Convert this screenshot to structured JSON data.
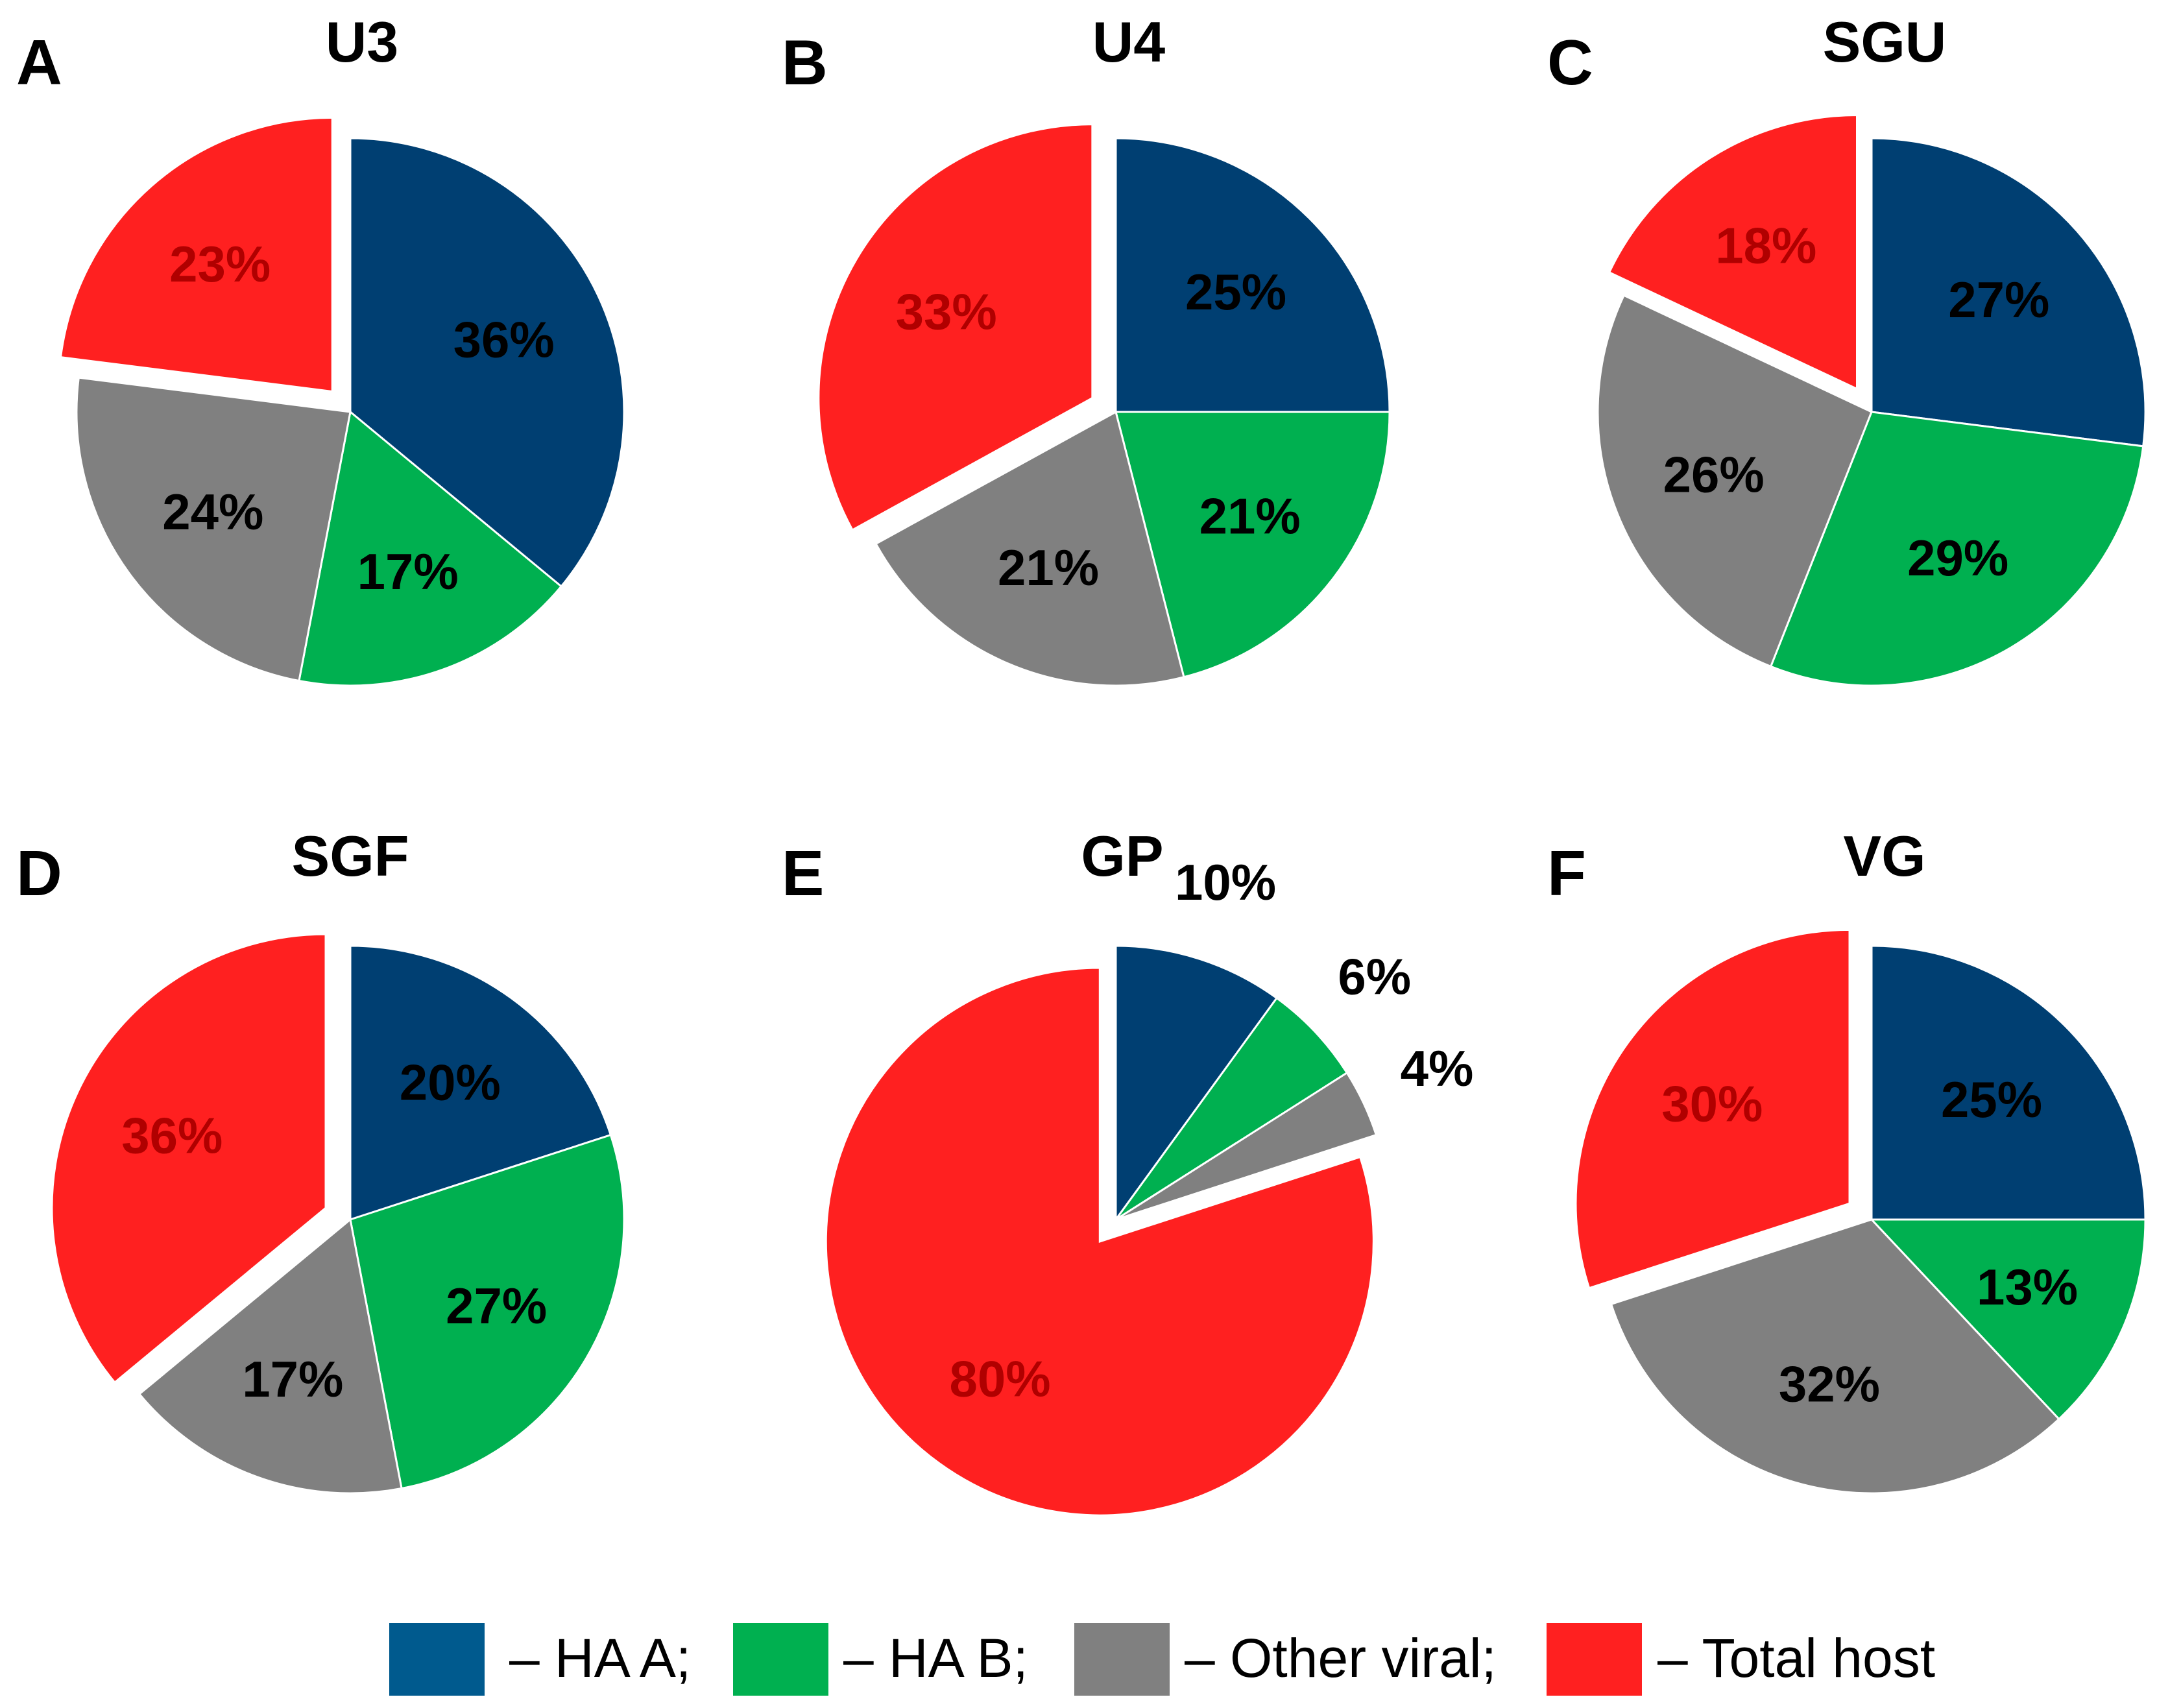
{
  "legend": {
    "items": [
      {
        "label": "– HA A;",
        "color": "#005a8e"
      },
      {
        "label": "– HA B;",
        "color": "#00b050"
      },
      {
        "label": "– Other viral;",
        "color": "#808080"
      },
      {
        "label": "– Total host",
        "color": "#ff2020"
      }
    ]
  },
  "chart_data": [
    {
      "type": "pie",
      "panel": "A",
      "title": "U3",
      "slices": [
        {
          "name": "HA A",
          "value": 36,
          "label": "36%",
          "color": "#003f72",
          "labelColor": "#000000"
        },
        {
          "name": "HA B",
          "value": 17,
          "label": "17%",
          "color": "#00b050",
          "labelColor": "#000000"
        },
        {
          "name": "Other viral",
          "value": 24,
          "label": "24%",
          "color": "#808080",
          "labelColor": "#000000"
        },
        {
          "name": "Total host",
          "value": 23,
          "label": "23%",
          "color": "#ff2020",
          "labelColor": "#b00000",
          "exploded": true
        }
      ]
    },
    {
      "type": "pie",
      "panel": "B",
      "title": "U4",
      "slices": [
        {
          "name": "HA A",
          "value": 25,
          "label": "25%",
          "color": "#003f72",
          "labelColor": "#000000"
        },
        {
          "name": "HA B",
          "value": 21,
          "label": "21%",
          "color": "#00b050",
          "labelColor": "#000000"
        },
        {
          "name": "Other viral",
          "value": 21,
          "label": "21%",
          "color": "#808080",
          "labelColor": "#000000"
        },
        {
          "name": "Total host",
          "value": 33,
          "label": "33%",
          "color": "#ff2020",
          "labelColor": "#b00000",
          "exploded": true
        }
      ]
    },
    {
      "type": "pie",
      "panel": "C",
      "title": "SGU",
      "slices": [
        {
          "name": "HA A",
          "value": 27,
          "label": "27%",
          "color": "#003f72",
          "labelColor": "#000000"
        },
        {
          "name": "HA B",
          "value": 29,
          "label": "29%",
          "color": "#00b050",
          "labelColor": "#000000"
        },
        {
          "name": "Other viral",
          "value": 26,
          "label": "26%",
          "color": "#808080",
          "labelColor": "#000000"
        },
        {
          "name": "Total host",
          "value": 18,
          "label": "18%",
          "color": "#ff2020",
          "labelColor": "#b00000",
          "exploded": true
        }
      ]
    },
    {
      "type": "pie",
      "panel": "D",
      "title": "SGF",
      "slices": [
        {
          "name": "HA A",
          "value": 20,
          "label": "20%",
          "color": "#003f72",
          "labelColor": "#000000"
        },
        {
          "name": "HA B",
          "value": 27,
          "label": "27%",
          "color": "#00b050",
          "labelColor": "#000000"
        },
        {
          "name": "Other viral",
          "value": 17,
          "label": "17%",
          "color": "#808080",
          "labelColor": "#000000"
        },
        {
          "name": "Total host",
          "value": 36,
          "label": "36%",
          "color": "#ff2020",
          "labelColor": "#b00000",
          "exploded": true
        }
      ]
    },
    {
      "type": "pie",
      "panel": "E",
      "title": "GP",
      "slices": [
        {
          "name": "HA A",
          "value": 10,
          "label": "10%",
          "color": "#003f72",
          "labelColor": "#000000",
          "outsideLabel": true
        },
        {
          "name": "HA B",
          "value": 6,
          "label": "6%",
          "color": "#00b050",
          "labelColor": "#000000",
          "outsideLabel": true
        },
        {
          "name": "Other viral",
          "value": 4,
          "label": "4%",
          "color": "#808080",
          "labelColor": "#000000",
          "outsideLabel": true
        },
        {
          "name": "Total host",
          "value": 80,
          "label": "80%",
          "color": "#ff2020",
          "labelColor": "#b00000",
          "exploded": true
        }
      ]
    },
    {
      "type": "pie",
      "panel": "F",
      "title": "VG",
      "slices": [
        {
          "name": "HA A",
          "value": 25,
          "label": "25%",
          "color": "#003f72",
          "labelColor": "#000000"
        },
        {
          "name": "HA B",
          "value": 13,
          "label": "13%",
          "color": "#00b050",
          "labelColor": "#000000"
        },
        {
          "name": "Other viral",
          "value": 32,
          "label": "32%",
          "color": "#808080",
          "labelColor": "#000000"
        },
        {
          "name": "Total host",
          "value": 30,
          "label": "30%",
          "color": "#ff2020",
          "labelColor": "#b00000",
          "exploded": true
        }
      ]
    }
  ]
}
